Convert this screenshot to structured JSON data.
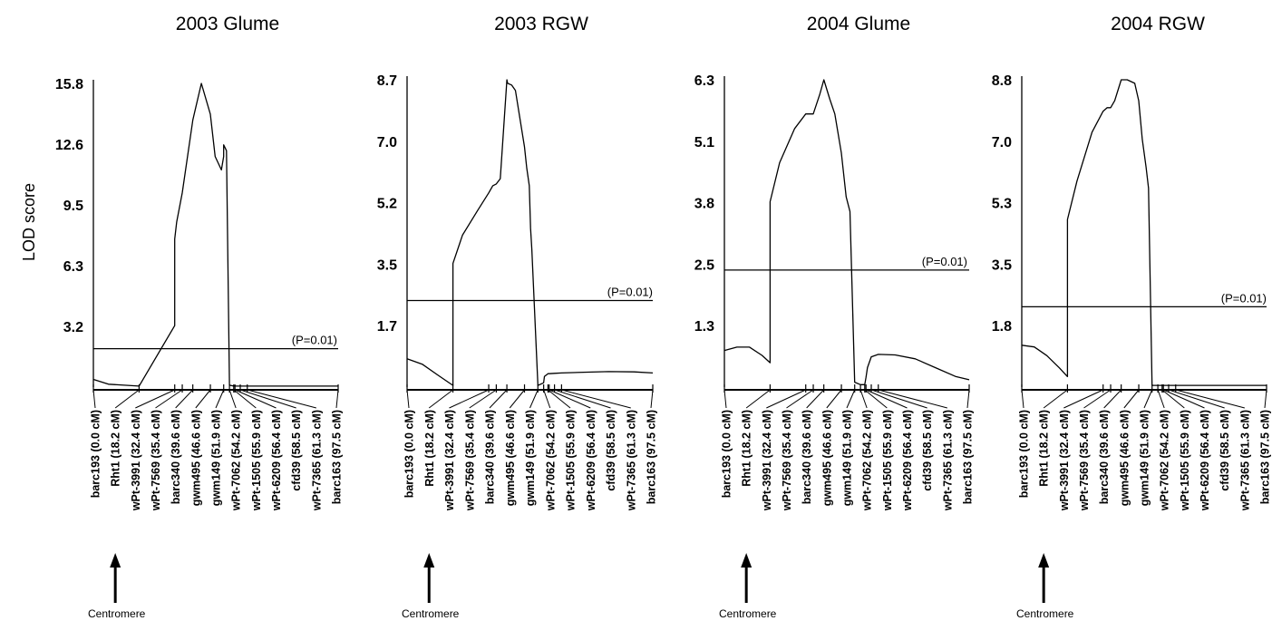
{
  "figure": {
    "ylabel": "LOD score",
    "centromere_label": "Centromere",
    "threshold_label": "(P=0.01)"
  },
  "chart_data": [
    {
      "type": "line",
      "title": "2003 Glume",
      "ylabel": "LOD score",
      "yticks": [
        "3.2",
        "6.3",
        "9.5",
        "12.6",
        "15.8"
      ],
      "ylim": [
        0,
        15.8
      ],
      "xlim": [
        0,
        97.5
      ],
      "threshold": 2.0,
      "x": [
        0,
        6,
        18.2,
        18.2,
        32.4,
        32.4,
        33.2,
        35.4,
        39.6,
        43,
        46.6,
        48.5,
        51,
        51.9,
        51.9,
        53,
        54.2,
        55.9,
        56.4,
        58.5,
        61.3,
        97.5
      ],
      "y": [
        0.4,
        0.15,
        0.05,
        0.05,
        3.2,
        7.7,
        8.6,
        10.1,
        13.9,
        15.8,
        14.2,
        12.0,
        11.3,
        12.0,
        12.6,
        12.3,
        0.1,
        0.05,
        0.05,
        0.05,
        0.05,
        0.05
      ]
    },
    {
      "type": "line",
      "title": "2003 RGW",
      "ylabel": "",
      "yticks": [
        "1.7",
        "3.5",
        "5.2",
        "7.0",
        "8.7"
      ],
      "ylim": [
        0,
        8.7
      ],
      "xlim": [
        0,
        97.5
      ],
      "threshold": 2.45,
      "x": [
        0,
        6,
        12,
        18.2,
        18.2,
        22,
        28,
        32.4,
        34,
        35.4,
        37,
        39.6,
        39.9,
        41.5,
        43,
        46.6,
        47.5,
        48.5,
        49,
        49.5,
        51.9,
        54.2,
        54.5,
        55.9,
        56.4,
        58.5,
        61.3,
        70,
        80,
        90,
        97.5
      ],
      "y": [
        0.8,
        0.65,
        0.35,
        0.05,
        3.5,
        4.3,
        5.0,
        5.5,
        5.7,
        5.75,
        5.9,
        8.7,
        8.6,
        8.55,
        8.4,
        6.8,
        6.2,
        5.7,
        4.5,
        3.9,
        0.05,
        0.12,
        0.3,
        0.38,
        0.38,
        0.39,
        0.4,
        0.42,
        0.44,
        0.43,
        0.4
      ]
    },
    {
      "type": "line",
      "title": "2004 Glume",
      "ylabel": "",
      "yticks": [
        "1.3",
        "2.5",
        "3.8",
        "5.1",
        "6.3"
      ],
      "ylim": [
        0,
        6.3
      ],
      "xlim": [
        0,
        97.5
      ],
      "threshold": 2.4,
      "x": [
        0,
        5,
        10,
        15,
        18.2,
        18.2,
        22,
        28,
        32.4,
        35.4,
        38,
        39.6,
        42,
        44,
        46.6,
        48.5,
        50,
        51.9,
        54.2,
        54.5,
        55.9,
        56.4,
        57,
        58.5,
        61.3,
        68,
        76,
        84,
        92,
        97.5
      ],
      "y": [
        0.75,
        0.82,
        0.82,
        0.65,
        0.5,
        3.8,
        4.6,
        5.3,
        5.6,
        5.6,
        6.0,
        6.3,
        5.9,
        5.6,
        4.8,
        3.9,
        3.6,
        0.1,
        0.05,
        0.05,
        0.05,
        0.2,
        0.4,
        0.62,
        0.67,
        0.66,
        0.58,
        0.4,
        0.22,
        0.15
      ]
    },
    {
      "type": "line",
      "title": "2004 RGW",
      "ylabel": "",
      "yticks": [
        "1.8",
        "3.5",
        "5.3",
        "7.0",
        "8.8"
      ],
      "ylim": [
        0,
        8.8
      ],
      "xlim": [
        0,
        97.5
      ],
      "threshold": 2.3,
      "x": [
        0,
        5,
        10,
        15,
        18.2,
        18.2,
        22,
        28,
        32.4,
        34,
        35.4,
        37,
        39.6,
        42,
        45,
        46.6,
        48,
        49.5,
        50.5,
        51.9,
        54.2,
        55,
        55.9,
        56.4,
        58.5,
        61.3,
        97.5
      ],
      "y": [
        1.2,
        1.15,
        0.9,
        0.55,
        0.3,
        4.8,
        5.9,
        7.3,
        7.9,
        8.0,
        8.0,
        8.2,
        8.8,
        8.8,
        8.7,
        8.2,
        7.1,
        6.3,
        5.7,
        0.05,
        0.05,
        0.05,
        0.05,
        0.05,
        0.05,
        0.05,
        0.05
      ]
    }
  ],
  "markers": [
    {
      "label": "barc193 (0.0 cM)",
      "pos": 0.0
    },
    {
      "label": "Rht1  (18.2 cM)",
      "pos": 18.2
    },
    {
      "label": "wPt-3991 (32.4 cM)",
      "pos": 32.4
    },
    {
      "label": "wPt-7569 (35.4 cM)",
      "pos": 35.4
    },
    {
      "label": "barc340 (39.6 cM)",
      "pos": 39.6
    },
    {
      "label": "gwm495 (46.6 cM)",
      "pos": 46.6
    },
    {
      "label": "gwm149 (51.9 cM)",
      "pos": 51.9
    },
    {
      "label": "wPt-7062 (54.2 cM)",
      "pos": 54.2
    },
    {
      "label": "wPt-1505 (55.9 cM)",
      "pos": 55.9
    },
    {
      "label": "wPt-6209 (56.4 cM)",
      "pos": 56.4
    },
    {
      "label": "cfd39 (58.5 cM)",
      "pos": 58.5
    },
    {
      "label": "wPt-7365 (61.3 cM)",
      "pos": 61.3
    },
    {
      "label": "barc163 (97.5 cM)",
      "pos": 97.5
    }
  ]
}
